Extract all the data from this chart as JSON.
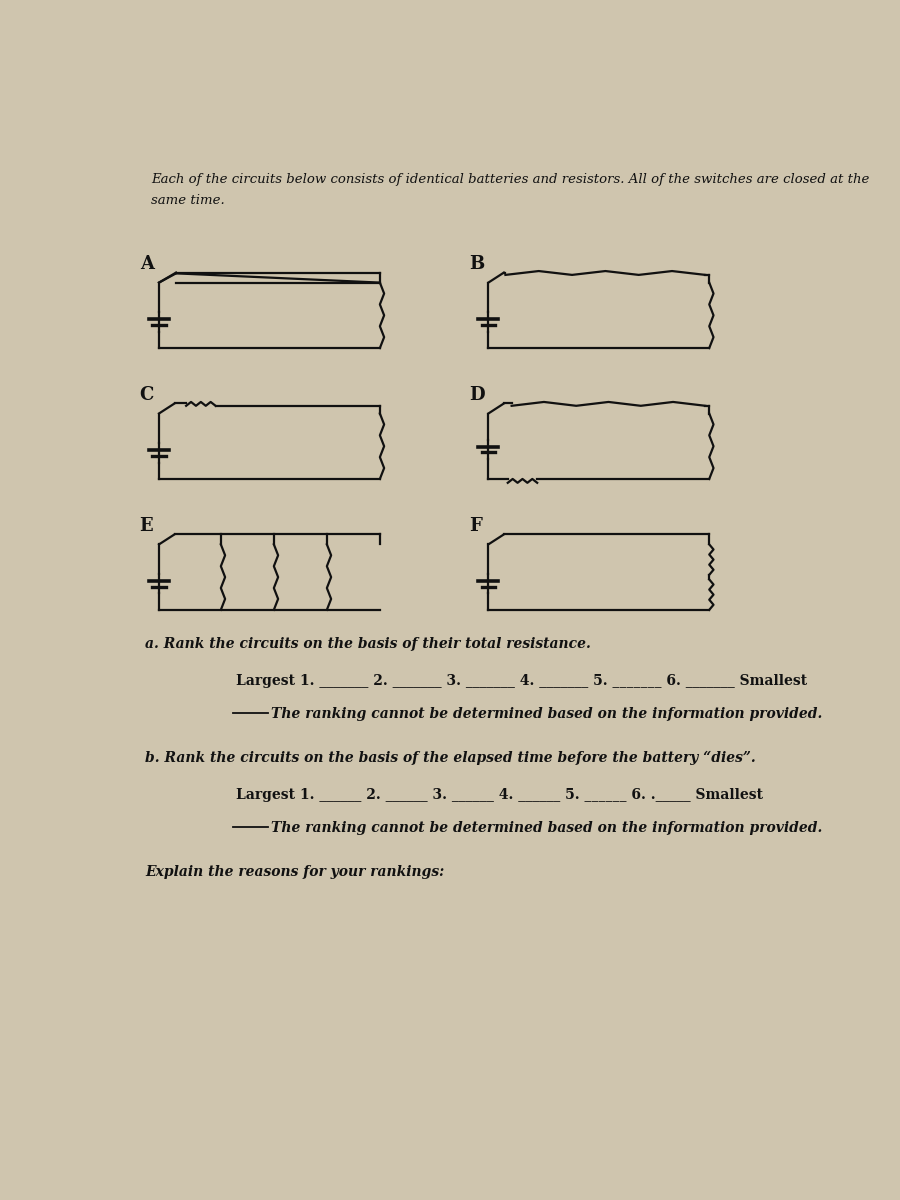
{
  "bg_color": "#cfc5ae",
  "title_line1": "Each of the circuits below consists of identical batteries and resistors. All of the switches are closed at the",
  "title_line2": "same time.",
  "question_a": "a. Rank the circuits on the basis of their total resistance.",
  "rank_text_a": "Largest 1. _______ 2. _______ 3. _______ 4. _______ 5. _______ 6. _______ Smallest",
  "cannot_det_a": "The ranking cannot be determined based on the information provided.",
  "question_b": "b. Rank the circuits on the basis of the elapsed time before the battery “dies”.",
  "rank_text_b": "Largest 1. ______ 2. ______ 3. ______ 4. ______ 5. ______ 6. ._____ Smallest",
  "cannot_det_b": "The ranking cannot be determined based on the information provided.",
  "explain": "Explain the reasons for your rankings:",
  "line_color": "#111111",
  "text_color": "#111111",
  "font_size_title": 9.5,
  "font_size_label": 13,
  "font_size_question": 10,
  "font_size_rank": 10
}
